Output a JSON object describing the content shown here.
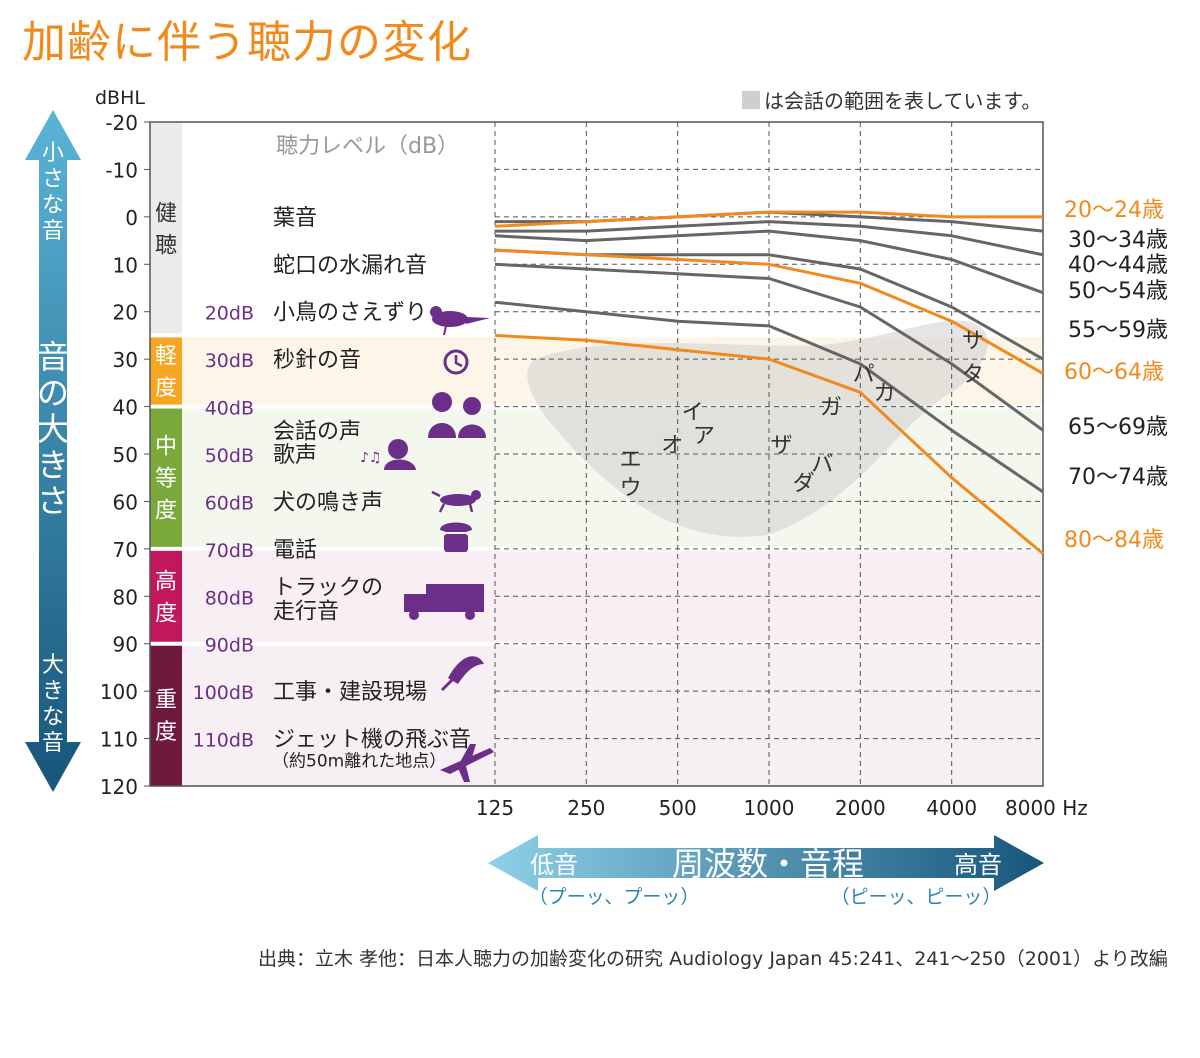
{
  "title": "加齢に伴う聴力の変化",
  "source": "出典：立木 孝他：日本人聴力の加齢変化の研究 Audiology Japan 45:241、241〜250（2001）より改編",
  "legend_note": "は会話の範囲を表しています。",
  "axis_note": "聴力レベル（dB）",
  "colors": {
    "orange": "#f08a1c",
    "gray": "#666666",
    "purple": "#6b2f8a",
    "axis_blue": "#2d86b0"
  },
  "left_arrow": {
    "top": "小さな音",
    "middle": "音の大きさ",
    "bottom": "大きな音"
  },
  "bottom_arrow": {
    "left": "低音",
    "middle": "周波数・音程",
    "right": "高音",
    "left_sub": "（プーッ、プーッ）",
    "right_sub": "（ピーッ、ピーッ）"
  },
  "categories": [
    {
      "label": "健聴",
      "color": "#ebebeb",
      "text_color": "#333333",
      "bg": "#ffffff",
      "from": -20,
      "to": 25
    },
    {
      "label": "軽度",
      "color": "#f5a623",
      "text_color": "#ffffff",
      "bg": "#fdf6e8",
      "from": 25,
      "to": 40
    },
    {
      "label": "中等度",
      "color": "#7ba83b",
      "text_color": "#ffffff",
      "bg": "#f4f7ee",
      "from": 40,
      "to": 70
    },
    {
      "label": "高度",
      "color": "#c2185b",
      "text_color": "#ffffff",
      "bg": "#f9eef3",
      "from": 70,
      "to": 90
    },
    {
      "label": "重度",
      "color": "#6d1a3c",
      "text_color": "#ffffff",
      "bg": "#f6eff3",
      "from": 90,
      "to": 120
    }
  ],
  "examples": [
    {
      "db_label": "",
      "text": [
        "葉音"
      ],
      "db": 0,
      "icon": ""
    },
    {
      "db_label": "",
      "text": [
        "蛇口の水漏れ音"
      ],
      "db": 10,
      "icon": ""
    },
    {
      "db_label": "20dB",
      "text": [
        "小鳥のさえずり"
      ],
      "db": 20,
      "icon": "bird-icon"
    },
    {
      "db_label": "30dB",
      "text": [
        "秒針の音"
      ],
      "db": 30,
      "icon": "clock-icon"
    },
    {
      "db_label": "40dB",
      "text": [],
      "db": 40,
      "icon": ""
    },
    {
      "db_label": "",
      "text": [
        "会話の声"
      ],
      "db": 45,
      "icon": "people-talking-icon"
    },
    {
      "db_label": "50dB",
      "text": [
        "歌声"
      ],
      "db": 50,
      "icon": "singer-icon"
    },
    {
      "db_label": "60dB",
      "text": [
        "犬の鳴き声"
      ],
      "db": 60,
      "icon": "dog-icon"
    },
    {
      "db_label": "70dB",
      "text": [
        "電話"
      ],
      "db": 70,
      "icon": "telephone-icon"
    },
    {
      "db_label": "80dB",
      "text": [
        "トラックの",
        "走行音"
      ],
      "db": 80,
      "icon": "truck-icon"
    },
    {
      "db_label": "90dB",
      "text": [],
      "db": 90,
      "icon": ""
    },
    {
      "db_label": "100dB",
      "text": [
        "工事・建設現場"
      ],
      "db": 100,
      "icon": "drill-icon"
    },
    {
      "db_label": "110dB",
      "text": [
        "ジェット機の飛ぶ音"
      ],
      "db": 110,
      "icon": "airplane-icon"
    },
    {
      "db_label": "",
      "text": [
        "（約50m離れた地点）"
      ],
      "db": 115,
      "icon": ""
    }
  ],
  "phonemes": [
    {
      "text": "エ",
      "f": 350,
      "db": 51
    },
    {
      "text": "ウ",
      "f": 350,
      "db": 57
    },
    {
      "text": "オ",
      "f": 480,
      "db": 48
    },
    {
      "text": "イ",
      "f": 560,
      "db": 41
    },
    {
      "text": "ア",
      "f": 610,
      "db": 46
    },
    {
      "text": "ザ",
      "f": 1100,
      "db": 48
    },
    {
      "text": "ダ",
      "f": 1300,
      "db": 56
    },
    {
      "text": "バ",
      "f": 1500,
      "db": 52
    },
    {
      "text": "ガ",
      "f": 1600,
      "db": 40
    },
    {
      "text": "パ",
      "f": 2050,
      "db": 33
    },
    {
      "text": "カ",
      "f": 2400,
      "db": 37
    },
    {
      "text": "サ",
      "f": 4700,
      "db": 26
    },
    {
      "text": "タ",
      "f": 4700,
      "db": 33
    }
  ],
  "chart_data": {
    "type": "line",
    "x": [
      125,
      250,
      500,
      1000,
      2000,
      4000,
      8000
    ],
    "x_ticks": [
      "125",
      "250",
      "500",
      "1000",
      "2000",
      "4000",
      "8000 Hz"
    ],
    "xscale": "log",
    "ylabel": "dBHL",
    "ylim": [
      -20,
      120
    ],
    "y_inverted": true,
    "y_ticks": [
      -20,
      -10,
      0,
      10,
      20,
      30,
      40,
      50,
      60,
      70,
      80,
      90,
      100,
      110,
      120
    ],
    "grid": true,
    "series": [
      {
        "name": "20〜24歳",
        "color": "orange",
        "values": [
          2,
          1,
          0,
          -1,
          -1,
          0,
          0
        ]
      },
      {
        "name": "30〜34歳",
        "color": "gray",
        "values": [
          1,
          1,
          0,
          -1,
          0,
          1,
          3
        ]
      },
      {
        "name": "40〜44歳",
        "color": "gray",
        "values": [
          3,
          3,
          2,
          1,
          2,
          4,
          8
        ]
      },
      {
        "name": "50〜54歳",
        "color": "gray",
        "values": [
          4,
          5,
          4,
          3,
          5,
          9,
          16
        ]
      },
      {
        "name": "55〜59歳",
        "color": "gray",
        "values": [
          7,
          8,
          8,
          8,
          11,
          19,
          30
        ]
      },
      {
        "name": "60〜64歳",
        "color": "orange",
        "values": [
          7,
          8,
          9,
          10,
          14,
          22,
          33
        ]
      },
      {
        "name": "65〜69歳",
        "color": "gray",
        "values": [
          10,
          11,
          12,
          13,
          19,
          31,
          45
        ]
      },
      {
        "name": "70〜74歳",
        "color": "gray",
        "values": [
          18,
          20,
          22,
          23,
          31,
          45,
          58
        ]
      },
      {
        "name": "80〜84歳",
        "color": "orange",
        "values": [
          25,
          26,
          28,
          30,
          37,
          55,
          71
        ]
      }
    ]
  }
}
